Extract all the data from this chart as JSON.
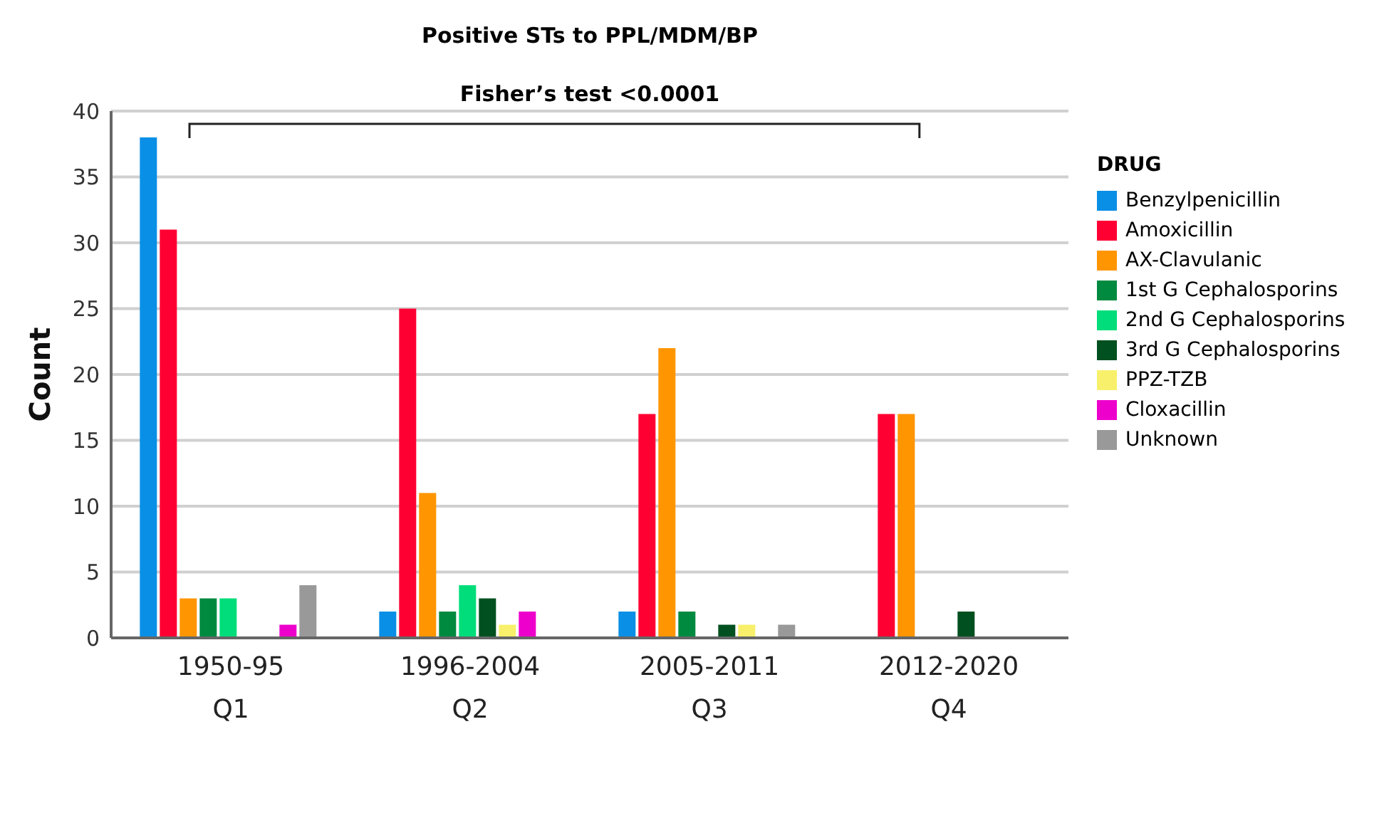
{
  "chart_data": {
    "type": "bar",
    "title": "Positive STs to PPL/MDM/BP",
    "ylabel": "Count",
    "legend_title": "DRUG",
    "categories": [
      "1950-95\nQ1",
      "1996-2004\nQ2",
      "2005-2011\nQ3",
      "2012-2020\nQ4"
    ],
    "series": [
      {
        "name": "Benzylpenicillin",
        "color": "#0a8fe6",
        "values": [
          38,
          2,
          2,
          0
        ]
      },
      {
        "name": "Amoxicillin",
        "color": "#ff0033",
        "values": [
          31,
          25,
          17,
          17
        ]
      },
      {
        "name": "AX-Clavulanic",
        "color": "#ff9500",
        "values": [
          3,
          11,
          22,
          17
        ]
      },
      {
        "name": "1st G Cephalosporins",
        "color": "#008a40",
        "values": [
          3,
          2,
          2,
          0
        ]
      },
      {
        "name": "2nd G Cephalosporins",
        "color": "#00dd7a",
        "values": [
          3,
          4,
          0,
          0
        ]
      },
      {
        "name": "3rd G Cephalosporins",
        "color": "#005020",
        "values": [
          0,
          3,
          1,
          2
        ]
      },
      {
        "name": "PPZ-TZB",
        "color": "#f8f06a",
        "values": [
          0,
          1,
          1,
          0
        ]
      },
      {
        "name": "Cloxacillin",
        "color": "#ee00cc",
        "values": [
          1,
          2,
          0,
          0
        ]
      },
      {
        "name": "Unknown",
        "color": "#999999",
        "values": [
          4,
          0,
          1,
          0
        ]
      }
    ],
    "ylim": [
      0,
      40
    ],
    "yticks": [
      0,
      5,
      10,
      15,
      20,
      25,
      30,
      35,
      40
    ],
    "grid": "y",
    "legend": "right",
    "annotations": [
      "Fisher’s test <0.0001"
    ]
  }
}
